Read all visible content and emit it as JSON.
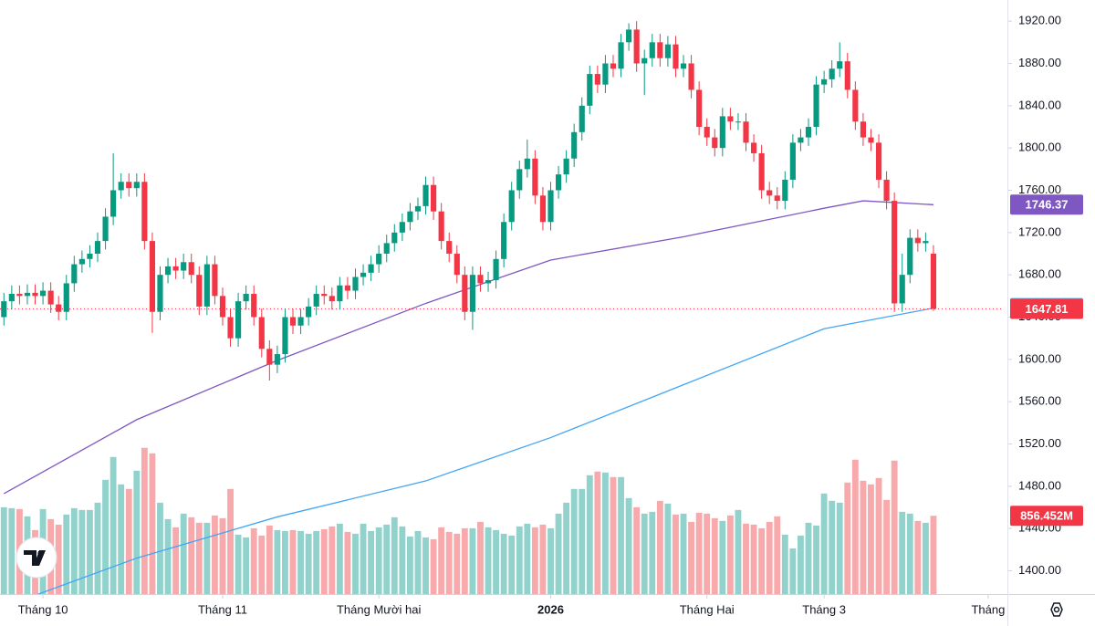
{
  "chart_data": {
    "type": "candlestick",
    "up_color": "#089981",
    "down_color": "#f23645",
    "volume_up_color": "#92d2cc",
    "volume_down_color": "#f7a9ab",
    "xlim": [
      -0.5,
      128
    ],
    "ylim": [
      1378,
      1940
    ],
    "yticks": [
      {
        "value": 1400,
        "label": "1400.00"
      },
      {
        "value": 1440,
        "label": "1440.00"
      },
      {
        "value": 1480,
        "label": "1480.00"
      },
      {
        "value": 1520,
        "label": "1520.00"
      },
      {
        "value": 1560,
        "label": "1560.00"
      },
      {
        "value": 1600,
        "label": "1600.00"
      },
      {
        "value": 1640,
        "label": "1640.00"
      },
      {
        "value": 1680,
        "label": "1680.00"
      },
      {
        "value": 1720,
        "label": "1720.00"
      },
      {
        "value": 1760,
        "label": "1760.00"
      },
      {
        "value": 1800,
        "label": "1800.00"
      },
      {
        "value": 1840,
        "label": "1840.00"
      },
      {
        "value": 1880,
        "label": "1880.00"
      },
      {
        "value": 1920,
        "label": "1920.00"
      }
    ],
    "xticks": [
      {
        "value": 5,
        "label": "Tháng 10"
      },
      {
        "value": 28,
        "label": "Tháng 11"
      },
      {
        "value": 48,
        "label": "Tháng Mười hai"
      },
      {
        "value": 70,
        "label": "2026"
      },
      {
        "value": 90,
        "label": "Tháng Hai"
      },
      {
        "value": 105,
        "label": "Tháng 3"
      },
      {
        "value": 126,
        "label": "Tháng"
      }
    ],
    "grid": false,
    "open": [
      1640,
      1655,
      1662,
      1660,
      1663,
      1660,
      1665,
      1652,
      1645,
      1672,
      1690,
      1695,
      1700,
      1712,
      1735,
      1760,
      1768,
      1762,
      1768,
      1712,
      1645,
      1680,
      1688,
      1684,
      1692,
      1680,
      1650,
      1690,
      1660,
      1640,
      1620,
      1655,
      1662,
      1640,
      1610,
      1595,
      1605,
      1640,
      1632,
      1640,
      1650,
      1662,
      1660,
      1655,
      1670,
      1665,
      1678,
      1682,
      1690,
      1700,
      1710,
      1720,
      1730,
      1740,
      1745,
      1765,
      1740,
      1712,
      1700,
      1680,
      1645,
      1680,
      1672,
      1675,
      1695,
      1730,
      1760,
      1780,
      1790,
      1755,
      1730,
      1760,
      1775,
      1790,
      1815,
      1840,
      1870,
      1860,
      1880,
      1875,
      1900,
      1912,
      1880,
      1885,
      1900,
      1885,
      1898,
      1875,
      1880,
      1855,
      1820,
      1810,
      1800,
      1830,
      1825,
      1825,
      1805,
      1795,
      1760,
      1755,
      1750,
      1770,
      1805,
      1810,
      1820,
      1860,
      1865,
      1875,
      1882,
      1855,
      1825,
      1810,
      1805,
      1770,
      1750,
      1653,
      1680,
      1715,
      1710,
      1700
    ],
    "high": [
      1663,
      1670,
      1670,
      1671,
      1671,
      1673,
      1673,
      1660,
      1680,
      1698,
      1703,
      1708,
      1720,
      1743,
      1795,
      1776,
      1776,
      1776,
      1776,
      1720,
      1688,
      1696,
      1696,
      1700,
      1700,
      1688,
      1698,
      1698,
      1668,
      1648,
      1663,
      1670,
      1670,
      1648,
      1618,
      1613,
      1648,
      1648,
      1648,
      1658,
      1670,
      1670,
      1668,
      1678,
      1678,
      1686,
      1690,
      1698,
      1708,
      1718,
      1728,
      1738,
      1748,
      1753,
      1773,
      1773,
      1748,
      1720,
      1708,
      1688,
      1688,
      1688,
      1683,
      1703,
      1738,
      1768,
      1788,
      1808,
      1798,
      1763,
      1768,
      1783,
      1798,
      1823,
      1848,
      1878,
      1878,
      1888,
      1888,
      1908,
      1918,
      1920,
      1893,
      1908,
      1908,
      1906,
      1906,
      1888,
      1888,
      1863,
      1828,
      1818,
      1838,
      1838,
      1833,
      1833,
      1813,
      1803,
      1768,
      1763,
      1778,
      1813,
      1818,
      1828,
      1868,
      1873,
      1883,
      1900,
      1890,
      1863,
      1833,
      1818,
      1813,
      1778,
      1758,
      1700,
      1723,
      1723,
      1720,
      1708
    ],
    "low": [
      1632,
      1647,
      1652,
      1652,
      1652,
      1652,
      1644,
      1637,
      1637,
      1664,
      1682,
      1687,
      1692,
      1704,
      1727,
      1752,
      1754,
      1754,
      1704,
      1625,
      1637,
      1672,
      1676,
      1676,
      1672,
      1642,
      1642,
      1652,
      1632,
      1612,
      1612,
      1647,
      1632,
      1602,
      1580,
      1587,
      1597,
      1624,
      1624,
      1632,
      1642,
      1652,
      1647,
      1647,
      1657,
      1657,
      1670,
      1674,
      1682,
      1692,
      1702,
      1712,
      1722,
      1732,
      1737,
      1732,
      1704,
      1692,
      1672,
      1637,
      1628,
      1664,
      1664,
      1667,
      1687,
      1722,
      1752,
      1772,
      1747,
      1722,
      1722,
      1752,
      1767,
      1782,
      1807,
      1832,
      1852,
      1852,
      1867,
      1867,
      1892,
      1872,
      1850,
      1877,
      1877,
      1877,
      1867,
      1867,
      1847,
      1812,
      1802,
      1792,
      1792,
      1817,
      1817,
      1797,
      1787,
      1752,
      1747,
      1742,
      1742,
      1762,
      1797,
      1802,
      1812,
      1852,
      1857,
      1867,
      1847,
      1817,
      1802,
      1797,
      1762,
      1742,
      1645,
      1645,
      1672,
      1702,
      1702,
      1646
    ],
    "close": [
      1655,
      1662,
      1660,
      1663,
      1660,
      1665,
      1652,
      1645,
      1672,
      1690,
      1695,
      1700,
      1712,
      1735,
      1760,
      1768,
      1762,
      1768,
      1712,
      1645,
      1680,
      1688,
      1684,
      1692,
      1680,
      1650,
      1690,
      1660,
      1640,
      1620,
      1655,
      1662,
      1640,
      1610,
      1595,
      1605,
      1640,
      1632,
      1640,
      1650,
      1662,
      1660,
      1655,
      1670,
      1665,
      1678,
      1682,
      1690,
      1700,
      1710,
      1720,
      1730,
      1740,
      1745,
      1765,
      1740,
      1712,
      1700,
      1680,
      1645,
      1680,
      1672,
      1675,
      1695,
      1730,
      1760,
      1780,
      1790,
      1755,
      1730,
      1760,
      1775,
      1790,
      1815,
      1840,
      1870,
      1860,
      1880,
      1875,
      1900,
      1912,
      1880,
      1885,
      1900,
      1885,
      1898,
      1875,
      1880,
      1855,
      1820,
      1810,
      1800,
      1830,
      1825,
      1825,
      1805,
      1795,
      1760,
      1755,
      1750,
      1770,
      1805,
      1810,
      1820,
      1860,
      1865,
      1875,
      1882,
      1855,
      1825,
      1810,
      1805,
      1770,
      1750,
      1653,
      1680,
      1715,
      1710,
      1712,
      1647.81
    ],
    "volume": {
      "lim": [
        0,
        6500
      ],
      "values": [
        950,
        940,
        930,
        850,
        700,
        930,
        820,
        760,
        870,
        940,
        920,
        920,
        1000,
        1250,
        1500,
        1200,
        1150,
        1350,
        1600,
        1540,
        1000,
        820,
        730,
        880,
        840,
        780,
        780,
        860,
        830,
        1150,
        650,
        620,
        720,
        640,
        750,
        700,
        690,
        700,
        690,
        660,
        690,
        710,
        740,
        770,
        680,
        660,
        770,
        690,
        730,
        760,
        840,
        740,
        630,
        690,
        620,
        600,
        730,
        680,
        660,
        720,
        720,
        790,
        730,
        700,
        660,
        640,
        740,
        770,
        730,
        760,
        720,
        880,
        1000,
        1150,
        1150,
        1300,
        1340,
        1330,
        1280,
        1280,
        1050,
        950,
        880,
        900,
        1020,
        990,
        870,
        880,
        790,
        890,
        880,
        830,
        800,
        860,
        920,
        770,
        760,
        720,
        790,
        850,
        650,
        500,
        640,
        780,
        750,
        1100,
        1020,
        1000,
        1220,
        1470,
        1240,
        1200,
        1270,
        1030,
        1460,
        900,
        880,
        800,
        780,
        856.452
      ],
      "last_label": "856.452M"
    },
    "series": [
      {
        "color": "#7e57c2",
        "x": [
          0,
          17,
          35,
          54,
          70,
          87,
          105,
          110,
          119
        ],
        "values": [
          1473,
          1543,
          1599,
          1653,
          1694,
          1716,
          1743,
          1750,
          1746.37
        ]
      },
      {
        "color": "#42a5f5",
        "x": [
          0,
          17,
          35,
          54,
          70,
          87,
          105,
          119
        ],
        "values": [
          1366,
          1412,
          1451,
          1485,
          1526,
          1576,
          1629,
          1648.54
        ]
      }
    ]
  }
}
